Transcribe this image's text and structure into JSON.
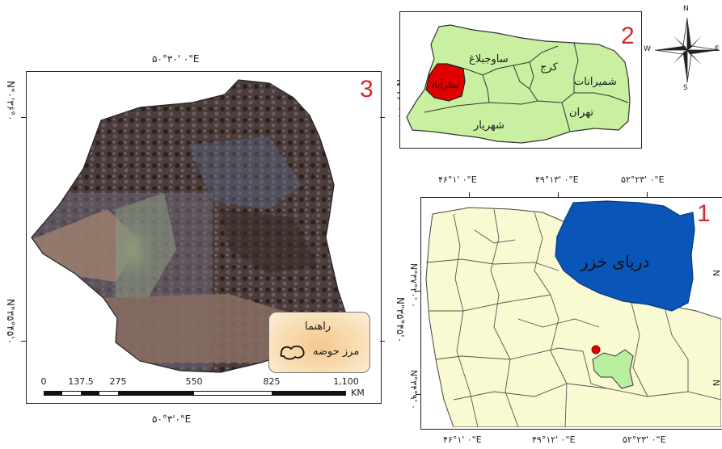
{
  "panel3": {
    "number": "3",
    "coords": {
      "top": "۵۰°۳۰' ۰\"E",
      "bottom": "۵۰°۳'۰\"E",
      "left_top": "N\"۰'۳۶°۰",
      "left_bottom": "N\"۳۵°۴۵'۰",
      "right_top": "N\"۳۶°۰'۰",
      "right_bottom": "N\"۳۵°۴۵'۰"
    },
    "legend": {
      "title": "راهنما",
      "item": "مرز حوضه"
    },
    "scalebar": {
      "labels": [
        "0",
        "137.5",
        "275",
        "550",
        "825",
        "1,100"
      ],
      "unit": "KM"
    }
  },
  "panel2": {
    "number": "2",
    "counties": {
      "savojbolagh": "ساوجبلاغ",
      "karaj": "کرج",
      "shemiranat": "شمیرانات",
      "nazarabad": "نظرآباد",
      "tehran": "تهران",
      "shahriar": "شهریار"
    },
    "compass": {
      "n": "N",
      "s": "S",
      "e": "E",
      "w": "W"
    }
  },
  "panel1": {
    "number": "1",
    "sea_label": "دریای خزر",
    "coords": {
      "top": [
        "۴۶°۱' ۰\"E",
        "۴۹°۱۳' ۰\"E",
        "۵۲°۲۳' ۰\"E"
      ],
      "bottom": [
        "۴۶°۱' ۰\"E",
        "۴۹°۱۲' ۰\"E",
        "۵۲°۲۳' ۰\"E"
      ],
      "left": [
        "N\"۳۷°۲۰' ۰",
        "N\"۳۴°۹' ۰"
      ],
      "right": [
        "N",
        "N"
      ]
    }
  },
  "colors": {
    "counties_fill": "#c8f0a0",
    "highlight": "#e00000",
    "sea": "#0a55b8",
    "provinces": "#fafad2",
    "study_province": "#b8f0a0",
    "panel_number": "#d8262c"
  }
}
